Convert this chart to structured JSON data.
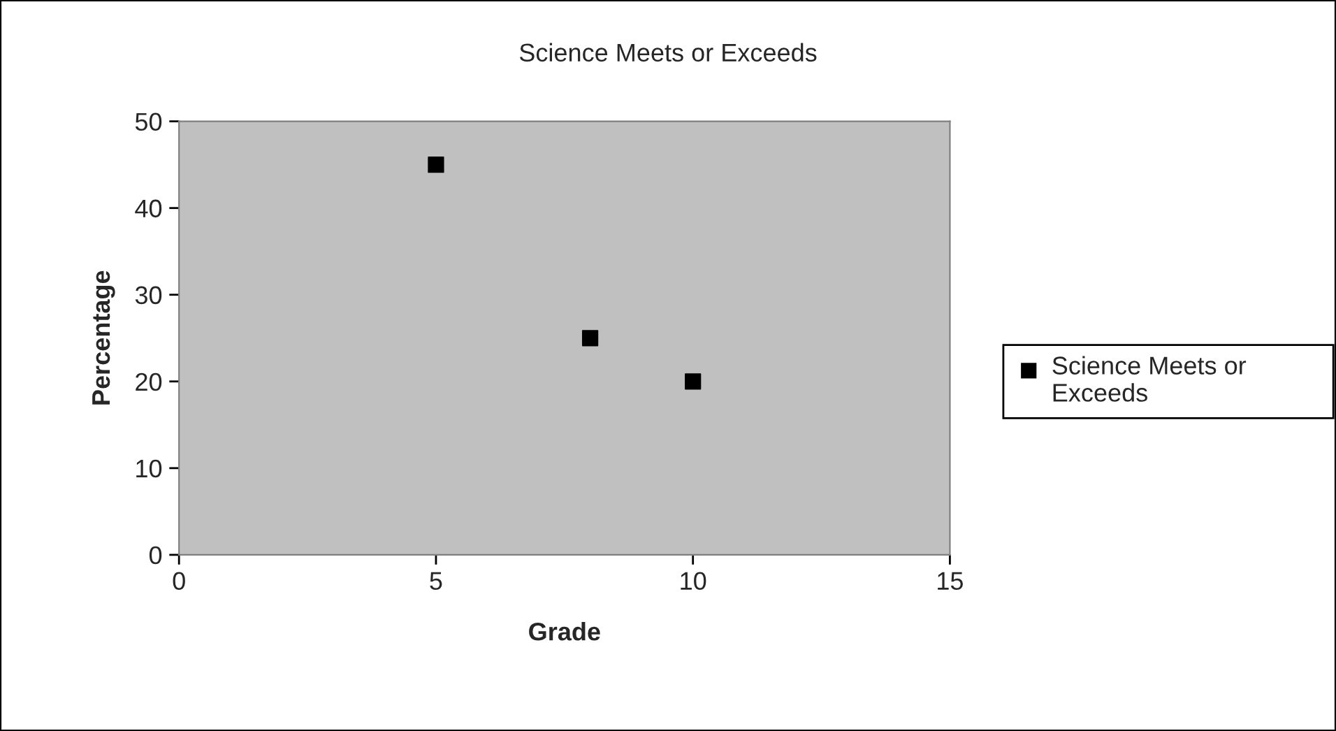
{
  "chart_data": {
    "type": "scatter",
    "title": "Science Meets or Exceeds",
    "xlabel": "Grade",
    "ylabel": "Percentage",
    "x": [
      5,
      8,
      10
    ],
    "series": [
      {
        "name": "Science Meets or Exceeds",
        "color": "#000000",
        "values": [
          45,
          25,
          20
        ]
      }
    ],
    "xlim": [
      0,
      15
    ],
    "xticks": [
      0,
      5,
      10,
      15
    ],
    "ylim": [
      0,
      50
    ],
    "yticks": [
      0,
      10,
      20,
      30,
      40,
      50
    ],
    "grid": false,
    "legend": "right",
    "marker": "square"
  }
}
